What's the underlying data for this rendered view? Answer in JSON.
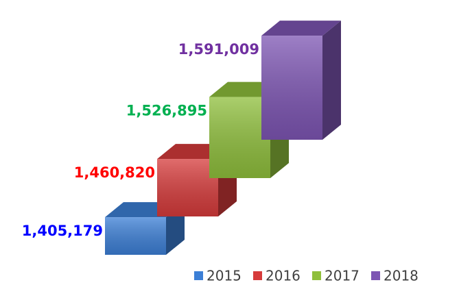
{
  "chart_data": {
    "type": "bar3d",
    "categories": [
      null
    ],
    "ylim": [
      1300000,
      1620000
    ],
    "series": [
      {
        "name": "2015",
        "color": "#3c7fd6",
        "label_color": "#0000ff",
        "values": [
          1405179
        ],
        "value_labels": [
          "1,405,179"
        ]
      },
      {
        "name": "2016",
        "color": "#d63b3b",
        "label_color": "#ff0000",
        "values": [
          1460820
        ],
        "value_labels": [
          "1,460,820"
        ]
      },
      {
        "name": "2017",
        "color": "#8fbf3c",
        "label_color": "#00b050",
        "values": [
          1526895
        ],
        "value_labels": [
          "1,526,895"
        ]
      },
      {
        "name": "2018",
        "color": "#7d55b3",
        "label_color": "#7030a0",
        "values": [
          1591009
        ],
        "value_labels": [
          "1,591,009"
        ]
      }
    ],
    "legend": "bottom-right"
  }
}
